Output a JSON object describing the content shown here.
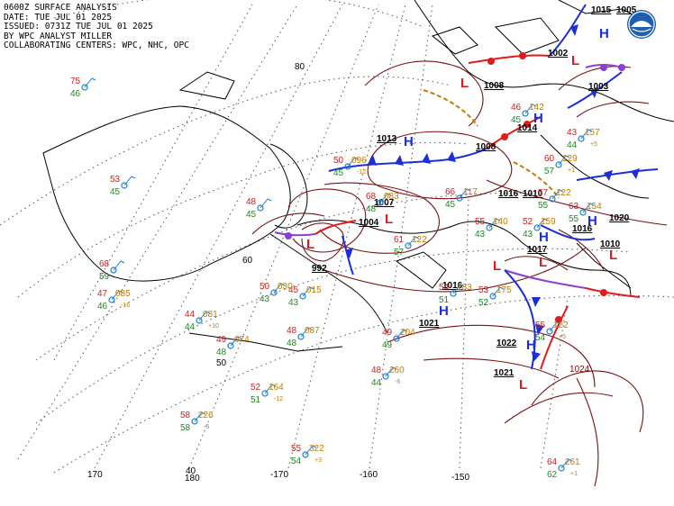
{
  "header": {
    "line1": "0600Z SURFACE ANALYSIS",
    "line2": "DATE: TUE JUL 01 2025",
    "line3": "ISSUED: 0731Z TUE JUL 01 2025",
    "line4": "BY WPC ANALYST MILLER",
    "line5": "COLLABORATING CENTERS: WPC, NHC, OPC"
  },
  "logo": {
    "name": "NOAA"
  },
  "grid_labels": {
    "lat80": "80",
    "lat60": "60",
    "lat50": "50",
    "lat40": "40",
    "lon170w": "-170",
    "lon160w": "-160",
    "lon150w": "-150",
    "lon170e": "170",
    "lon180": "180"
  },
  "pressure_centers": [
    {
      "kind": "H",
      "value": "1013"
    },
    {
      "kind": "H",
      "value": "1014"
    },
    {
      "kind": "H",
      "value": "1016"
    },
    {
      "kind": "H",
      "value": "1021"
    },
    {
      "kind": "H",
      "value": "1022"
    },
    {
      "kind": "H",
      "value": "1016"
    },
    {
      "kind": "H",
      "value": "1015"
    },
    {
      "kind": "L",
      "value": "1007"
    },
    {
      "kind": "L",
      "value": "1004"
    },
    {
      "kind": "L",
      "value": "992"
    },
    {
      "kind": "L",
      "value": "1008"
    },
    {
      "kind": "L",
      "value": "1002"
    },
    {
      "kind": "L",
      "value": "1005"
    },
    {
      "kind": "L",
      "value": "1003"
    },
    {
      "kind": "L",
      "value": "1010"
    },
    {
      "kind": "L",
      "value": "1017"
    },
    {
      "kind": "L",
      "value": "1021"
    },
    {
      "kind": "L",
      "value": "1020"
    },
    {
      "kind": "L",
      "value": "1008"
    }
  ],
  "isobar_labels": [
    "1024",
    "1016",
    "1010"
  ],
  "station_plots": [
    {
      "t": "75",
      "td": "46"
    },
    {
      "t": "53",
      "td": "45"
    },
    {
      "t": "48",
      "td": "45"
    },
    {
      "t": "68",
      "td": "59"
    },
    {
      "t": "47",
      "p": "085",
      "td": "46",
      "tend": "-16"
    },
    {
      "t": "44",
      "p": "081",
      "td": "44",
      "tend": "+10"
    },
    {
      "t": "49",
      "p": "074",
      "td": "48"
    },
    {
      "t": "45",
      "p": "015",
      "td": "43"
    },
    {
      "t": "48",
      "p": "087",
      "td": "48"
    },
    {
      "t": "52",
      "p": "164",
      "td": "51",
      "tend": "-12"
    },
    {
      "t": "58",
      "p": "226",
      "td": "58",
      "tend": "-5"
    },
    {
      "t": "55",
      "p": "322",
      "td": "54",
      "tend": "+3"
    },
    {
      "t": "64",
      "p": "261",
      "td": "62",
      "tend": "+1"
    },
    {
      "t": "48",
      "p": "260",
      "td": "44",
      "tend": "-6"
    },
    {
      "t": "49",
      "p": "204",
      "td": "49"
    },
    {
      "t": "50",
      "p": "096",
      "td": "45",
      "tend": "-12"
    },
    {
      "t": "68",
      "p": "083",
      "td": "48"
    },
    {
      "t": "66",
      "p": "117",
      "td": "45"
    },
    {
      "t": "55",
      "p": "140",
      "td": "43"
    },
    {
      "t": "52",
      "p": "159",
      "td": "43"
    },
    {
      "t": "53",
      "p": "175",
      "td": "52"
    },
    {
      "t": "55",
      "p": "122",
      "td": "54",
      "tend": "+5"
    },
    {
      "t": "61",
      "p": "122",
      "td": "57"
    },
    {
      "t": "54",
      "p": "183",
      "td": "51"
    },
    {
      "t": "63",
      "p": "154",
      "td": "55"
    },
    {
      "t": "60",
      "p": "129",
      "td": "57",
      "tend": "+1"
    },
    {
      "t": "50",
      "p": "030",
      "td": "43"
    },
    {
      "t": "57",
      "p": "122",
      "td": "55"
    },
    {
      "t": "46",
      "p": "142",
      "td": "45"
    },
    {
      "t": "43",
      "p": "157",
      "td": "44",
      "tend": "+5"
    }
  ],
  "colors": {
    "high": "#1a2fd6",
    "low": "#e01b1b",
    "isobar": "#7a1010",
    "land": "#000000",
    "grid": "#555555",
    "temp": "#cc2222",
    "dew": "#228822",
    "press": "#c77a00",
    "station": "#1e7fd0",
    "cold_front": "#1a2fd6",
    "warm_front": "#e01b1b",
    "occluded": "#8a3fd0",
    "trough": "#c77a00"
  }
}
